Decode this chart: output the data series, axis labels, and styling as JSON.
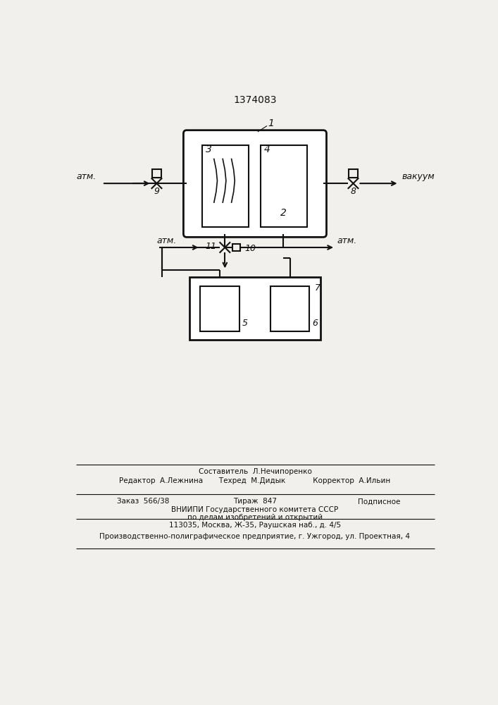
{
  "title": "1374083",
  "bg_color": "#f2f0ec",
  "line_color": "#111111",
  "footer_lines": [
    "Составитель  Л.Нечипоренко",
    "Редактор  А.Лежнина       Техред  М.Дидык            Корректор  А.Ильин",
    "Заказ  566/38              Тираж  847                  Подписное",
    "ВНИИПИ Государственного комитета СССР",
    "по делам изобретений и открытий",
    "113035, Москва, Ж-35, Раушская наб., д. 4/5",
    "Производственно-полиграфическое предприятие, г. Ужгород, ул. Проектная, 4"
  ],
  "labels": {
    "atm_left_top": "атм.",
    "vacuum_right": "вакуум",
    "atm_left_mid": "атм.",
    "atm_right_mid": "атм.",
    "num1": "1",
    "num2": "2",
    "num3": "3",
    "num4": "4",
    "num5": "5",
    "num6": "6",
    "num7": "7",
    "num8": "8",
    "num9": "9",
    "num10": "10",
    "num11": "11"
  }
}
